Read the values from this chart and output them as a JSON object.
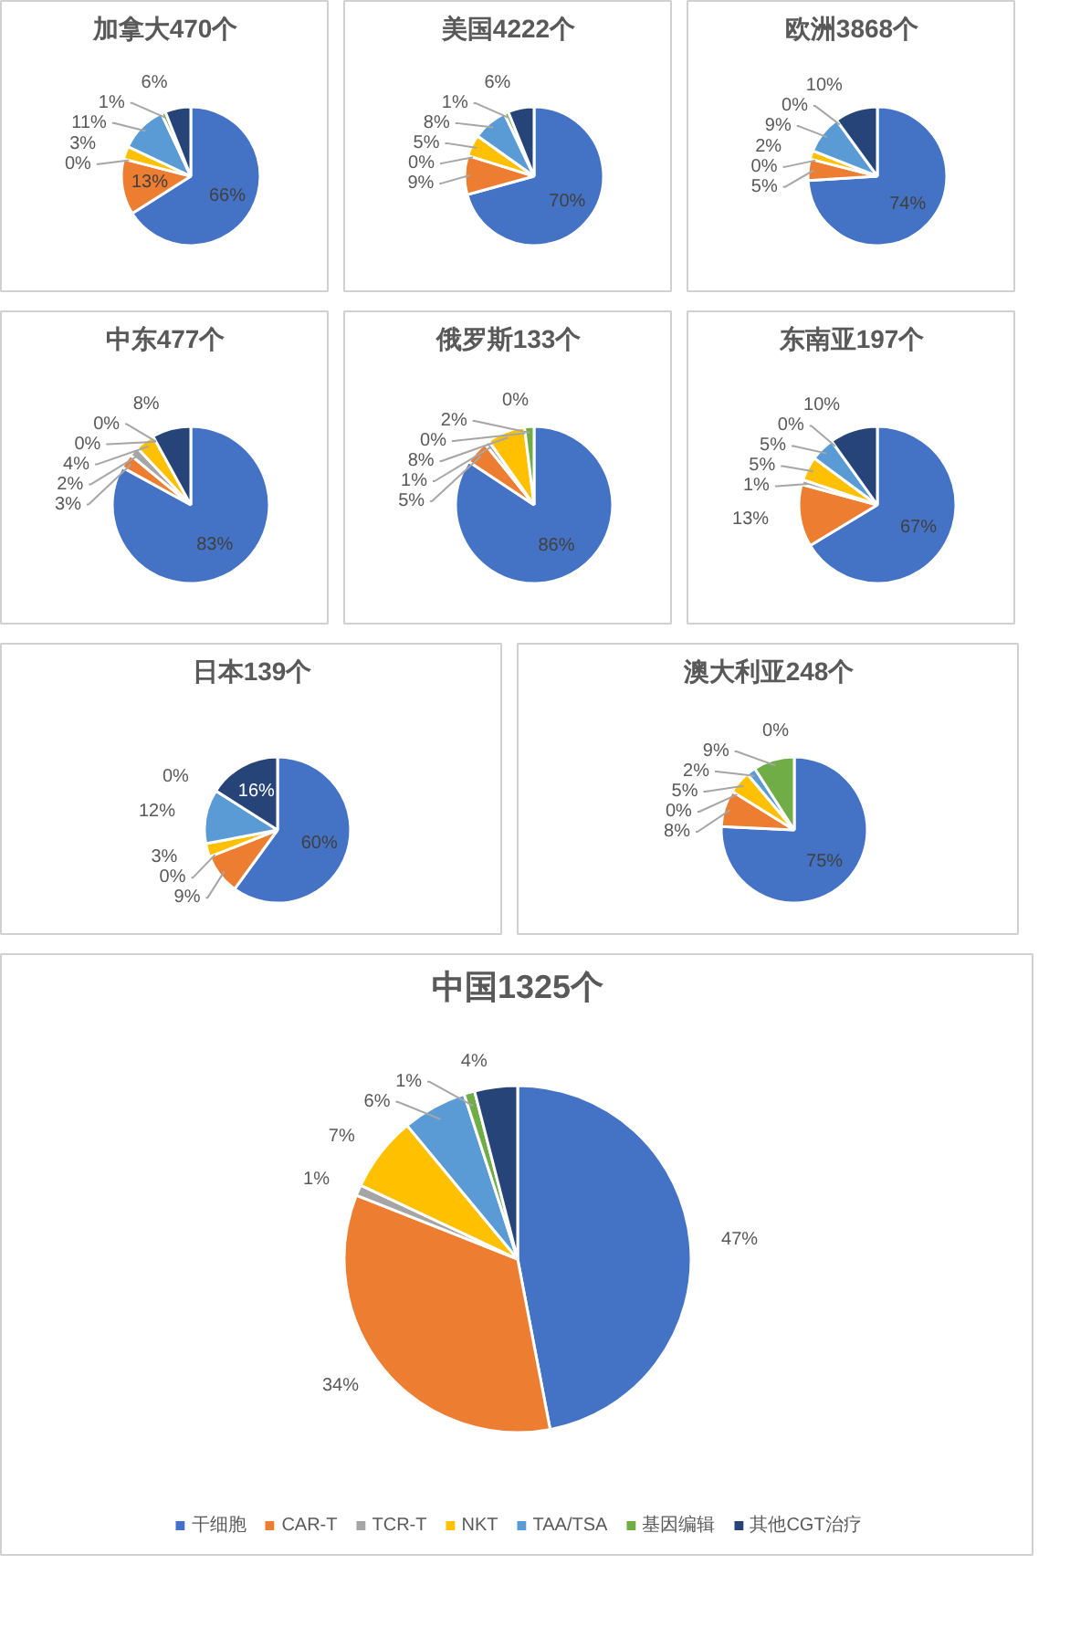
{
  "chart_data": [
    {
      "type": "pie",
      "title": "加拿大470个",
      "categories": [
        null,
        null,
        null,
        null,
        null,
        null,
        null
      ],
      "values": [
        66,
        13,
        0,
        3,
        11,
        1,
        6
      ],
      "value_labels": [
        "66%",
        "13%",
        "0%",
        "3%",
        "11%",
        "1%",
        "6%"
      ],
      "colors": [
        "#4472c4",
        "#ed7d31",
        "#a5a5a5",
        "#ffc000",
        "#5b9bd5",
        "#70ad47",
        "#264478"
      ]
    },
    {
      "type": "pie",
      "title": "美国4222个",
      "categories": [
        null,
        null,
        null,
        null,
        null,
        null,
        null
      ],
      "values": [
        70,
        9,
        0,
        5,
        8,
        1,
        6
      ],
      "value_labels": [
        "70%",
        "9%",
        "0%",
        "5%",
        "8%",
        "1%",
        "6%"
      ],
      "colors": [
        "#4472c4",
        "#ed7d31",
        "#a5a5a5",
        "#ffc000",
        "#5b9bd5",
        "#70ad47",
        "#264478"
      ]
    },
    {
      "type": "pie",
      "title": "欧洲3868个",
      "categories": [
        null,
        null,
        null,
        null,
        null,
        null,
        null
      ],
      "values": [
        74,
        5,
        0,
        2,
        9,
        0,
        10
      ],
      "value_labels": [
        "74%",
        "5%",
        "0%",
        "2%",
        "9%",
        "0%",
        "10%"
      ],
      "colors": [
        "#4472c4",
        "#ed7d31",
        "#a5a5a5",
        "#ffc000",
        "#5b9bd5",
        "#70ad47",
        "#264478"
      ]
    },
    {
      "type": "pie",
      "title": "中东477个",
      "categories": [
        null,
        null,
        null,
        null,
        null,
        null,
        null
      ],
      "values": [
        83,
        3,
        2,
        4,
        0,
        0,
        8
      ],
      "value_labels": [
        "83%",
        "3%",
        "2%",
        "4%",
        "0%",
        "0%",
        "8%"
      ],
      "colors": [
        "#4472c4",
        "#ed7d31",
        "#a5a5a5",
        "#ffc000",
        "#5b9bd5",
        "#70ad47",
        "#264478"
      ]
    },
    {
      "type": "pie",
      "title": "俄罗斯133个",
      "categories": [
        null,
        null,
        null,
        null,
        null,
        null,
        null
      ],
      "values": [
        86,
        5,
        1,
        8,
        0,
        2,
        0
      ],
      "value_labels": [
        "86%",
        "5%",
        "1%",
        "8%",
        "0%",
        "2%",
        "0%"
      ],
      "colors": [
        "#4472c4",
        "#ed7d31",
        "#a5a5a5",
        "#ffc000",
        "#5b9bd5",
        "#70ad47",
        "#264478"
      ]
    },
    {
      "type": "pie",
      "title": "东南亚197个",
      "categories": [
        null,
        null,
        null,
        null,
        null,
        null,
        null
      ],
      "values": [
        67,
        13,
        1,
        5,
        5,
        0,
        10
      ],
      "value_labels": [
        "67%",
        "13%",
        "1%",
        "5%",
        "5%",
        "0%",
        "10%"
      ],
      "colors": [
        "#4472c4",
        "#ed7d31",
        "#a5a5a5",
        "#ffc000",
        "#5b9bd5",
        "#70ad47",
        "#264478"
      ]
    },
    {
      "type": "pie",
      "title": "日本139个",
      "categories": [
        null,
        null,
        null,
        null,
        null,
        null,
        null
      ],
      "values": [
        60,
        9,
        0,
        3,
        12,
        0,
        16
      ],
      "value_labels": [
        "60%",
        "9%",
        "0%",
        "3%",
        "12%",
        "0%",
        "16%"
      ],
      "colors": [
        "#4472c4",
        "#ed7d31",
        "#a5a5a5",
        "#ffc000",
        "#5b9bd5",
        "#70ad47",
        "#264478"
      ]
    },
    {
      "type": "pie",
      "title": "澳大利亚248个",
      "categories": [
        null,
        null,
        null,
        null,
        null,
        null,
        null
      ],
      "values": [
        75,
        8,
        0,
        5,
        2,
        9,
        0
      ],
      "value_labels": [
        "75%",
        "8%",
        "0%",
        "5%",
        "2%",
        "9%",
        "0%"
      ],
      "colors": [
        "#4472c4",
        "#ed7d31",
        "#a5a5a5",
        "#ffc000",
        "#5b9bd5",
        "#70ad47",
        "#264478"
      ]
    },
    {
      "type": "pie",
      "title": "中国1325个",
      "categories": [
        "干细胞",
        "CAR-T",
        "TCR-T",
        "NKT",
        "TAA/TSA",
        "基因编辑",
        "其他CGT治疗"
      ],
      "values": [
        47,
        34,
        1,
        7,
        6,
        1,
        4
      ],
      "value_labels": [
        "47%",
        "34%",
        "1%",
        "7%",
        "6%",
        "1%",
        "4%"
      ],
      "colors": [
        "#4472c4",
        "#ed7d31",
        "#a5a5a5",
        "#ffc000",
        "#5b9bd5",
        "#70ad47",
        "#264478"
      ],
      "legend": "bottom"
    }
  ]
}
